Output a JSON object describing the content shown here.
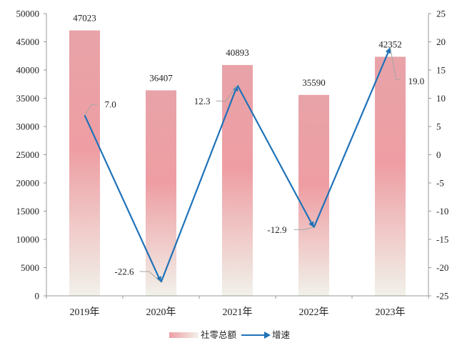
{
  "chart_data": {
    "type": "bar+line",
    "title": "",
    "categories": [
      "2019年",
      "2020年",
      "2021年",
      "2022年",
      "2023年"
    ],
    "series": [
      {
        "name": "社零总额",
        "type": "bar",
        "axis": "left",
        "values": [
          47023,
          36407,
          40893,
          35590,
          42352
        ],
        "labels": [
          "47023",
          "36407",
          "40893",
          "35590",
          "42352"
        ]
      },
      {
        "name": "增速",
        "type": "line",
        "axis": "right",
        "values": [
          7.0,
          -22.6,
          12.3,
          -12.9,
          19.0
        ],
        "labels": [
          "7.0",
          "-22.6",
          "12.3",
          "-12.9",
          "19.0"
        ]
      }
    ],
    "y_left": {
      "min": 0,
      "max": 50000,
      "ticks": [
        "0",
        "5000",
        "10000",
        "15000",
        "20000",
        "25000",
        "30000",
        "35000",
        "40000",
        "45000",
        "50000"
      ]
    },
    "y_right": {
      "min": -25,
      "max": 25,
      "ticks": [
        "-25",
        "-20",
        "-15",
        "-10",
        "-5",
        "0",
        "5",
        "10",
        "15",
        "20",
        "25"
      ]
    },
    "grid": false,
    "legend": "bottom",
    "colors": {
      "bar_top": "#e8a3a8",
      "bar_mid": "#ee9ea3",
      "bar_bottom": "#f1f1ea",
      "line": "#1f72b8",
      "axis": "#999999",
      "leader": "#a6a6a6"
    }
  }
}
